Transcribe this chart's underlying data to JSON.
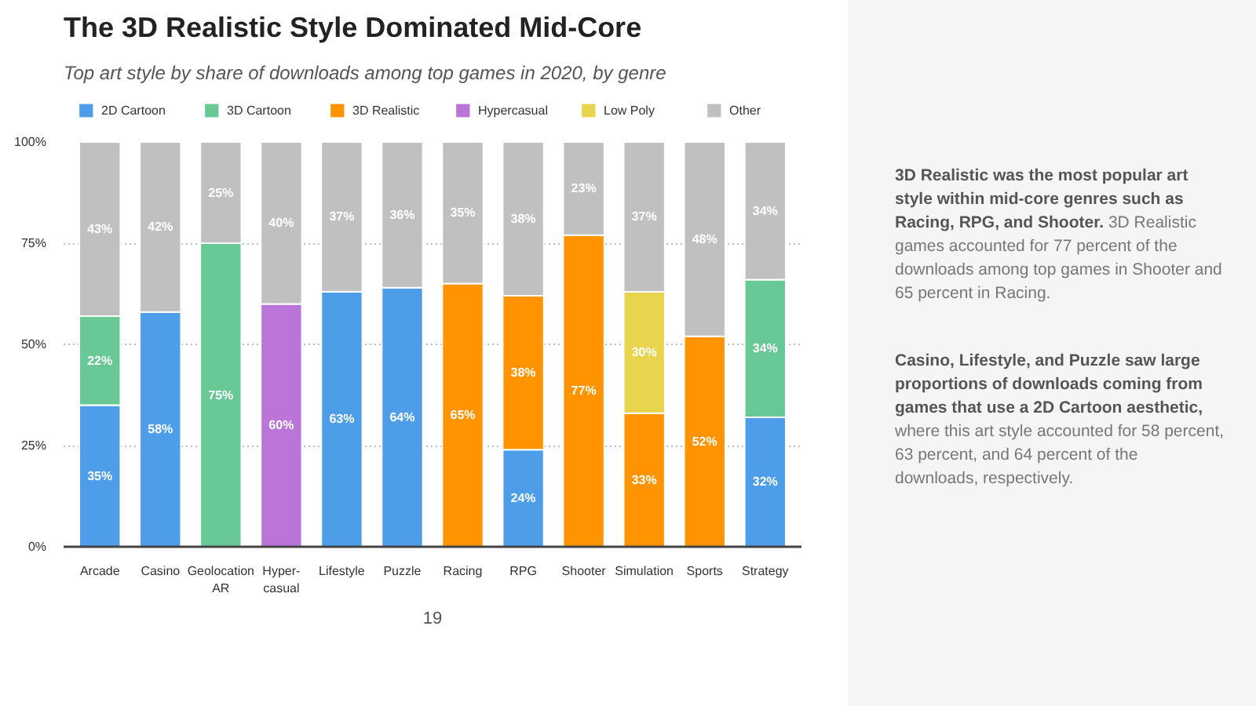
{
  "chart_data": {
    "type": "bar",
    "stacked": true,
    "title": "The 3D Realistic Style Dominated Mid-Core",
    "subtitle": "Top art style by share of downloads among top games in 2020, by genre",
    "categories": [
      "Arcade",
      "Casino",
      "Geolocation\nAR",
      "Hyper-\ncasual",
      "Lifestyle",
      "Puzzle",
      "Racing",
      "RPG",
      "Shooter",
      "Simulation",
      "Sports",
      "Strategy"
    ],
    "series": [
      {
        "name": "2D Cartoon",
        "color": "#4d9de8",
        "values": [
          35,
          58,
          null,
          null,
          63,
          64,
          null,
          24,
          null,
          null,
          null,
          32
        ],
        "value_labels": [
          "35%",
          "58%",
          null,
          null,
          "63%",
          "64%",
          null,
          "24%",
          null,
          null,
          null,
          "32%"
        ]
      },
      {
        "name": "3D Cartoon",
        "color": "#68c997",
        "values": [
          22,
          null,
          75,
          null,
          null,
          null,
          null,
          null,
          null,
          null,
          null,
          34
        ],
        "value_labels": [
          "22%",
          null,
          "75%",
          null,
          null,
          null,
          null,
          null,
          null,
          null,
          null,
          "34%"
        ]
      },
      {
        "name": "3D Realistic",
        "color": "#ff9300",
        "values": [
          null,
          null,
          null,
          null,
          null,
          null,
          65,
          38,
          77,
          33,
          52,
          null
        ],
        "value_labels": [
          null,
          null,
          null,
          null,
          null,
          null,
          "65%",
          "38%",
          "77%",
          "33%",
          "52%",
          null
        ]
      },
      {
        "name": "Hypercasual",
        "color": "#bb74d8",
        "values": [
          null,
          null,
          null,
          60,
          null,
          null,
          null,
          null,
          null,
          null,
          null,
          null
        ],
        "value_labels": [
          null,
          null,
          null,
          "60%",
          null,
          null,
          null,
          null,
          null,
          null,
          null,
          null
        ]
      },
      {
        "name": "Low Poly",
        "color": "#e8d44d",
        "values": [
          null,
          null,
          null,
          null,
          null,
          null,
          null,
          null,
          null,
          30,
          null,
          null
        ],
        "value_labels": [
          null,
          null,
          null,
          null,
          null,
          null,
          null,
          null,
          null,
          "30%",
          null,
          null
        ]
      },
      {
        "name": "Other",
        "color": "#c0c0c0",
        "values": [
          43,
          42,
          25,
          40,
          37,
          36,
          35,
          38,
          23,
          37,
          48,
          34
        ],
        "value_labels": [
          "43%",
          "42%",
          "25%",
          "40%",
          "37%",
          "36%",
          "35%",
          "38%",
          "23%",
          "37%",
          "48%",
          "34%"
        ]
      }
    ],
    "ylim": [
      0,
      100
    ],
    "yticks": [
      {
        "value": 0,
        "label": "0%"
      },
      {
        "value": 25,
        "label": "25%"
      },
      {
        "value": 50,
        "label": "50%"
      },
      {
        "value": 75,
        "label": "75%"
      },
      {
        "value": 100,
        "label": "100%"
      }
    ],
    "grid": "y",
    "legend": "top",
    "annotations": [
      "3D Realistic was the most popular art style within mid-core genres  such as Racing, RPG, and Shooter.",
      "3D Realistic games accounted for 77 percent of the downloads among top games in Shooter and 65 percent in Racing.",
      "Casino, Lifestyle, and Puzzle saw large proportions of downloads coming from games that use a 2D Cartoon aesthetic,",
      "where this art style accounted for 58 percent, 63 percent, and 64 percent of the downloads, respectively.",
      "19"
    ]
  }
}
